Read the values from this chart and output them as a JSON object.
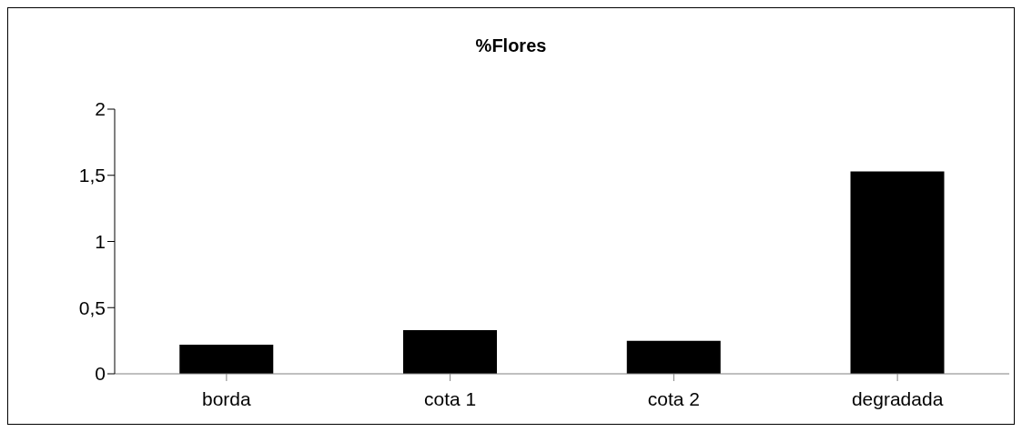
{
  "chart_data": {
    "type": "bar",
    "title": "%Flores",
    "categories": [
      "borda",
      "cota 1",
      "cota 2",
      "degradada"
    ],
    "values": [
      0.22,
      0.33,
      0.25,
      1.53
    ],
    "color": "#000000",
    "ylim": [
      0,
      2
    ],
    "yticks": [
      0,
      {
        "value": 0.5,
        "label": "0,5"
      },
      1,
      {
        "value": 1.5,
        "label": "1,5"
      },
      2
    ],
    "grid": false,
    "legend": false
  }
}
